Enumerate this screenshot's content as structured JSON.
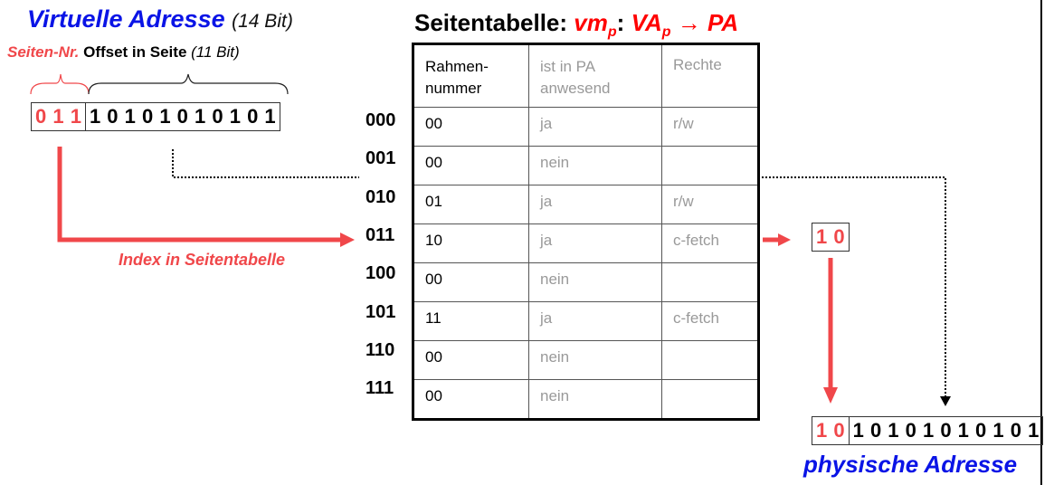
{
  "virtual": {
    "title": "Virtuelle Adresse",
    "bits_note": "(14 Bit)",
    "page_label": "Seiten-Nr.",
    "offset_label": "Offset in Seite",
    "offset_note": "(11 Bit)",
    "page_bits": "0 1 1",
    "offset_bits": "1 0 1 0 1 0 1 0 1 0 1"
  },
  "table": {
    "title": "Seitentabelle:",
    "formula_vm": "vm",
    "formula_sub": "p",
    "formula_colon": ":",
    "formula_va": "VA",
    "formula_va_sub": "p",
    "formula_rest": "→ PA",
    "headers": [
      "Rahmen-\nnummer",
      "ist in PA\nanwesend",
      "Rechte"
    ],
    "rows": [
      {
        "index": "000",
        "frame": "00",
        "present": "ja",
        "rights": "r/w"
      },
      {
        "index": "001",
        "frame": "00",
        "present": "nein",
        "rights": ""
      },
      {
        "index": "010",
        "frame": "01",
        "present": "ja",
        "rights": "r/w"
      },
      {
        "index": "011",
        "frame": "10",
        "present": "ja",
        "rights": "c-fetch"
      },
      {
        "index": "100",
        "frame": "00",
        "present": "nein",
        "rights": ""
      },
      {
        "index": "101",
        "frame": "11",
        "present": "ja",
        "rights": "c-fetch"
      },
      {
        "index": "110",
        "frame": "00",
        "present": "nein",
        "rights": ""
      },
      {
        "index": "111",
        "frame": "00",
        "present": "nein",
        "rights": ""
      }
    ]
  },
  "index_label": "Index in Seitentabelle",
  "frame_result": "1 0",
  "physical": {
    "title": "physische Adresse",
    "frame_bits": "1 0",
    "offset_bits": "1 0 1 0 1 0 1 0 1 0 1"
  },
  "colors": {
    "blue": "#0a14e6",
    "red": "#f0474a",
    "formula_red": "#ff0000"
  }
}
